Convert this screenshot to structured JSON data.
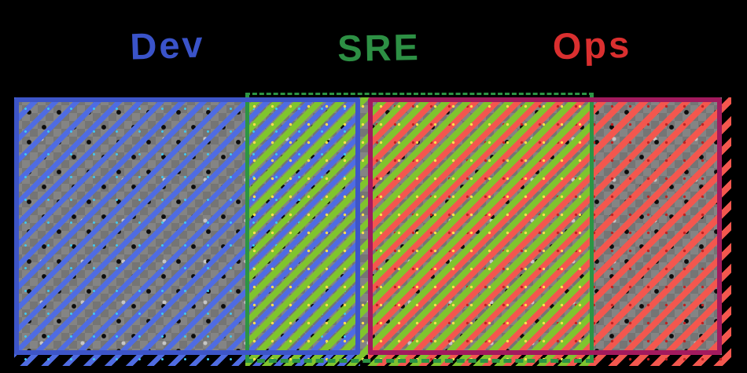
{
  "labels": {
    "dev": "Dev",
    "sre": "SRE",
    "ops": "Ops"
  },
  "diagram_description": "Dev and Ops boxes overlap-free side by side; SRE band spans the right part of Dev and left part of Ops",
  "theme": {
    "dev-label": "#3a53c9",
    "sre-label": "#2d9044",
    "ops-label": "#da2f2f",
    "dev-stripe": "#4f6ce2",
    "dev-border": "#3d55c8",
    "sre-stripe": "#80c42e",
    "sre-border": "#2c9444",
    "ops-stripe": "#f3574e",
    "ops-border": "#a21a5e",
    "checker-light": "#848484",
    "checker-dark": "#757575",
    "dot-dark": "#0d0d0d",
    "dot-light": "#c6c6c6",
    "speck-cyan": "#40c8f0",
    "speck-yellow": "#ffe14d",
    "speck-darkred": "#bf2121"
  }
}
